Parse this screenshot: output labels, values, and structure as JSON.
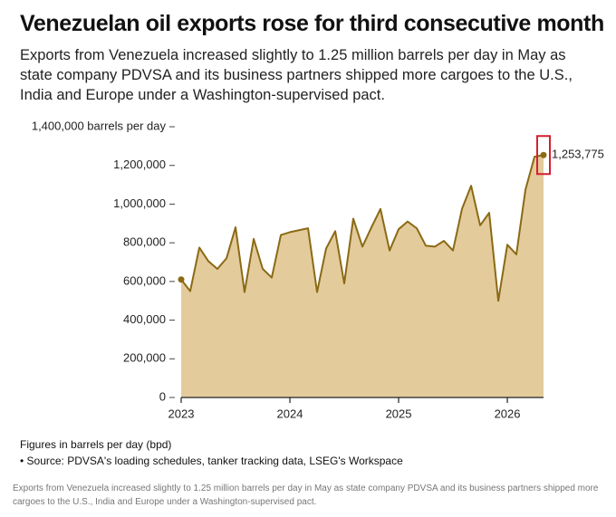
{
  "chart_data": {
    "type": "area",
    "title": "Venezuelan oil exports rose for third consecutive month",
    "subtitle": "Exports from Venezuela increased slightly to 1.25 million barrels per day in May as state company PDVSA and its business partners shipped more cargoes to the U.S., India and Europe under a Washington-supervised pact.",
    "x": [
      2023.0,
      2023.083,
      2023.167,
      2023.25,
      2023.333,
      2023.417,
      2023.5,
      2023.583,
      2023.667,
      2023.75,
      2023.833,
      2023.917,
      2024.0,
      2024.083,
      2024.167,
      2024.25,
      2024.333,
      2024.417,
      2024.5,
      2024.583,
      2024.667,
      2024.75,
      2024.833,
      2024.917,
      2025.0,
      2025.083,
      2025.167,
      2025.25,
      2025.333,
      2025.417,
      2025.5,
      2025.583,
      2025.667,
      2025.75,
      2025.833,
      2025.917,
      2026.0,
      2026.083,
      2026.167,
      2026.25,
      2026.333
    ],
    "values": [
      610000,
      550000,
      775000,
      705000,
      665000,
      720000,
      880000,
      545000,
      820000,
      665000,
      620000,
      840000,
      855000,
      865000,
      875000,
      545000,
      770000,
      860000,
      590000,
      925000,
      780000,
      880000,
      975000,
      760000,
      870000,
      910000,
      875000,
      785000,
      780000,
      810000,
      760000,
      975000,
      1095000,
      890000,
      955000,
      500000,
      790000,
      740000,
      1075000,
      1245000,
      1253775
    ],
    "value_labels": [
      null,
      null,
      null,
      null,
      null,
      null,
      null,
      null,
      null,
      null,
      null,
      null,
      null,
      null,
      null,
      null,
      null,
      null,
      null,
      null,
      null,
      null,
      null,
      null,
      null,
      null,
      null,
      null,
      null,
      null,
      null,
      null,
      null,
      null,
      null,
      null,
      null,
      null,
      null,
      null,
      "1,253,775"
    ],
    "color": "#8a6a14",
    "fill": "#e4cb9c",
    "highlight_color": "#d42030",
    "xlim": [
      2023.0,
      2026.333
    ],
    "xticks": [
      2023,
      2024,
      2025,
      2026
    ],
    "ylim": [
      0,
      1400000
    ],
    "yticks": [
      0,
      {
        "value": 200000,
        "label": "200,000"
      },
      {
        "value": 400000,
        "label": "400,000"
      },
      {
        "value": 600000,
        "label": "600,000"
      },
      {
        "value": 800000,
        "label": "800,000"
      },
      {
        "value": 1000000,
        "label": "1,000,000"
      },
      {
        "value": 1200000,
        "label": "1,200,000"
      },
      {
        "value": 1400000,
        "label": "1,400,000 barrels per day"
      }
    ],
    "grid": false,
    "notes": [
      "Figures in barrels per day (bpd)",
      "• Source: PDVSA's loading schedules, tanker tracking data, LSEG's Workspace"
    ],
    "caption": "Exports from Venezuela increased slightly to 1.25 million barrels per day in May as state company PDVSA and its business partners shipped more cargoes to the U.S., India and Europe under a Washington-supervised pact."
  }
}
